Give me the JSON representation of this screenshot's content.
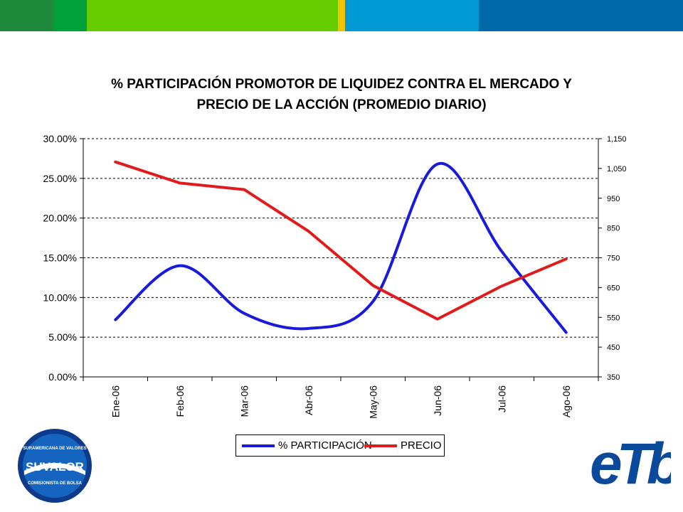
{
  "header_bar": {
    "colors": [
      "#1f8a3c",
      "#00a13a",
      "#66cc00",
      "#f2c400",
      "#0099d4",
      "#006aa8"
    ]
  },
  "chart_data": {
    "type": "line",
    "title_lines": [
      "% PARTICIPACIÓN PROMOTOR DE LIQUIDEZ CONTRA EL MERCADO Y",
      "PRECIO DE LA ACCIÓN (PROMEDIO DIARIO)"
    ],
    "categories": [
      "Ene-06",
      "Feb-06",
      "Mar-06",
      "Abr-06",
      "May-06",
      "Jun-06",
      "Jul-06",
      "Ago-06"
    ],
    "series": [
      {
        "name": "% PARTICIPACIÓN",
        "axis": "left",
        "color": "#1a1adb",
        "values": [
          7.2,
          14.0,
          8.0,
          6.1,
          9.5,
          26.8,
          15.8,
          5.6
        ]
      },
      {
        "name": "PRECIO",
        "axis": "right",
        "color": "#e01b1b",
        "values": [
          1072,
          1001,
          979,
          839,
          657,
          544,
          655,
          746
        ]
      }
    ],
    "y_left": {
      "min": 0,
      "max": 30,
      "step": 5,
      "tick_labels": [
        "0.00%",
        "5.00%",
        "10.00%",
        "15.00%",
        "20.00%",
        "25.00%",
        "30.00%"
      ]
    },
    "y_right": {
      "min": 350,
      "max": 1150,
      "step": 100,
      "tick_labels": [
        "350",
        "450",
        "550",
        "650",
        "750",
        "850",
        "950",
        "1,050",
        "1,150"
      ]
    },
    "grid": "horizontal-dashed",
    "legend_position": "bottom"
  },
  "legend": {
    "items": [
      {
        "label": "% PARTICIPACIÓN",
        "color": "#1a1adb"
      },
      {
        "label": "PRECIO",
        "color": "#e01b1b"
      }
    ]
  },
  "logos": {
    "suvalor": {
      "top_text": "SURAMERICANA DE VALORES",
      "name": "SUVALOR",
      "bottom_text": "COMISIONISTA DE BOLSA"
    },
    "etb": {
      "name": "eTb"
    }
  }
}
